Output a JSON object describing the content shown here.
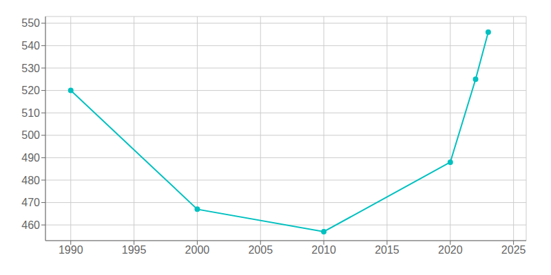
{
  "chart_data": {
    "type": "line",
    "x": [
      1990,
      2000,
      2010,
      2020,
      2022,
      2023
    ],
    "values": [
      520,
      467,
      457,
      488,
      525,
      546
    ],
    "color": "#00C0C0",
    "marker": "circle",
    "xlim": [
      1988,
      2026
    ],
    "ylim": [
      453,
      553
    ],
    "xticks": [
      1990,
      1995,
      2000,
      2005,
      2010,
      2015,
      2020,
      2025
    ],
    "yticks": [
      460,
      470,
      480,
      490,
      500,
      510,
      520,
      530,
      540,
      550
    ],
    "grid": true
  }
}
